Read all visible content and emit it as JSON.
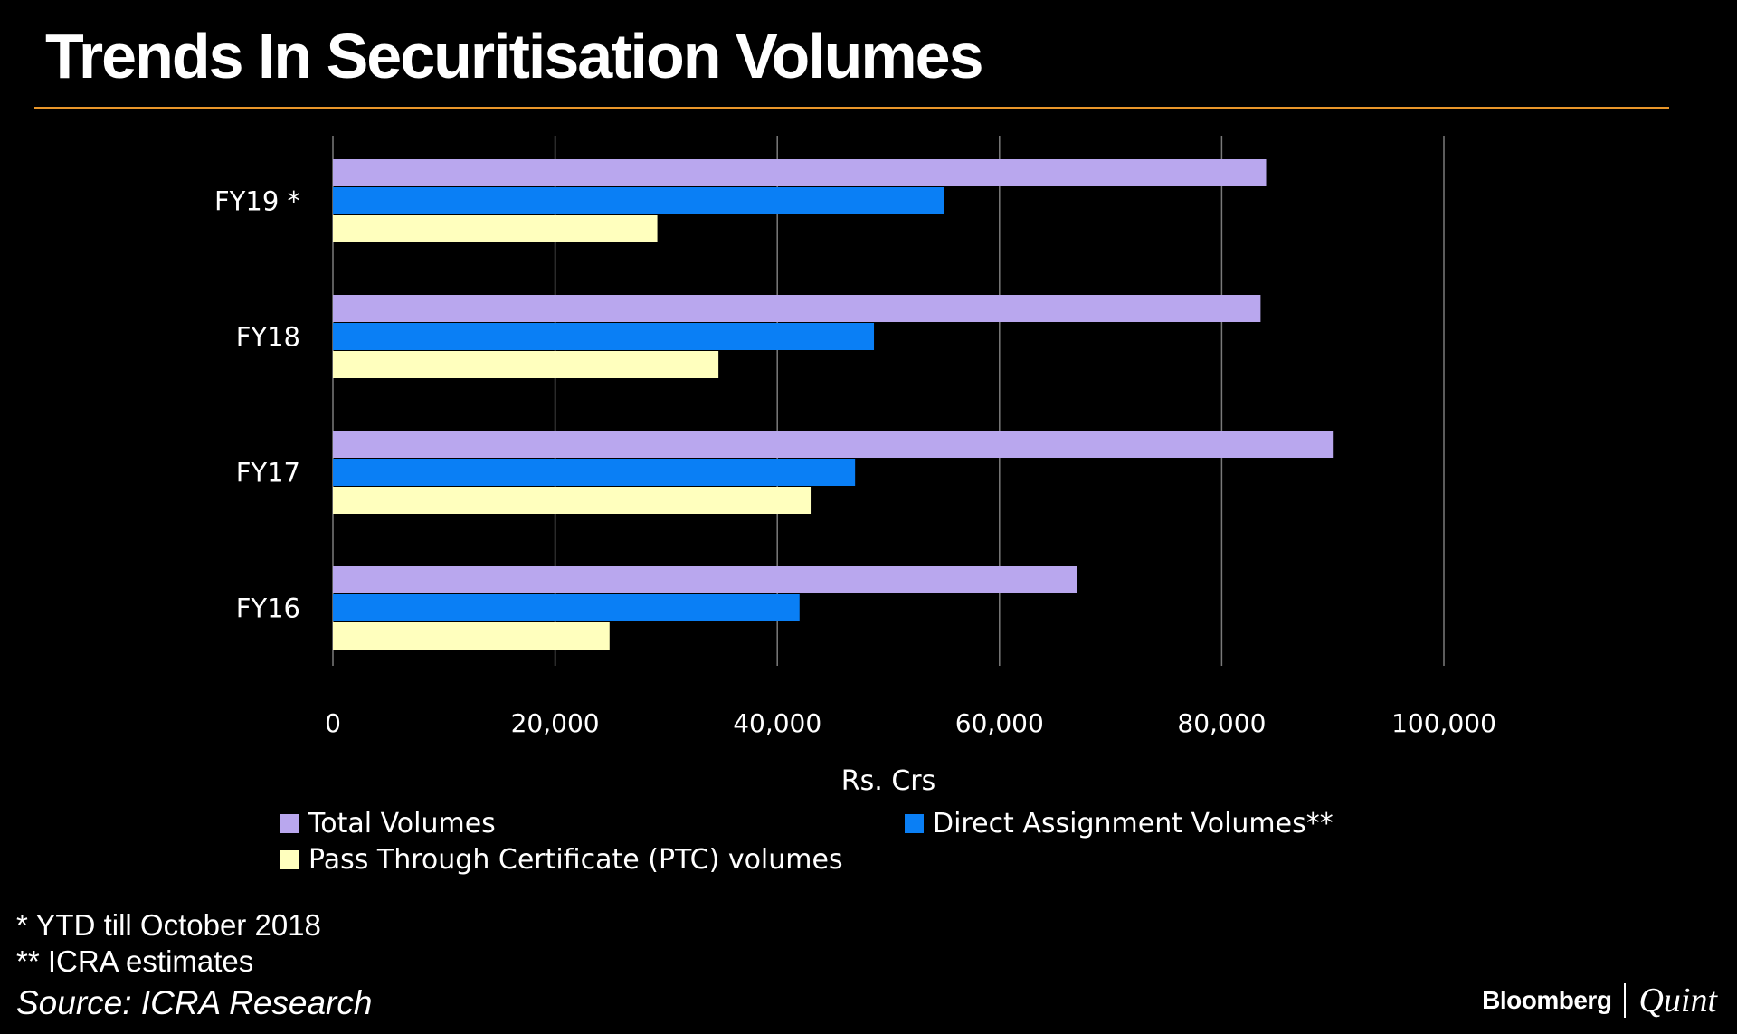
{
  "header": {
    "title": "Trends In Securitisation Volumes"
  },
  "chart_data": {
    "type": "bar",
    "orientation": "horizontal",
    "title": "Trends In Securitisation Volumes",
    "xlabel": "Rs. Crs",
    "ylabel": "",
    "xlim": [
      0,
      100000
    ],
    "xticks": [
      0,
      20000,
      40000,
      60000,
      80000,
      100000
    ],
    "xtick_labels": [
      "0",
      "20,000",
      "40,000",
      "60,000",
      "80,000",
      "100,000"
    ],
    "grid": true,
    "categories": [
      "FY19*",
      "FY18",
      "FY17",
      "FY16"
    ],
    "series": [
      {
        "name": "Total Volumes",
        "color": "#b9a7ee",
        "values": [
          84000,
          83500,
          90000,
          67000
        ]
      },
      {
        "name": "Direct Assignment Volumes**",
        "color": "#0a7ff5",
        "values": [
          55000,
          48700,
          47000,
          42000
        ]
      },
      {
        "name": "Pass Through Certificate (PTC) volumes",
        "color": "#ffffbe",
        "values": [
          29200,
          34700,
          43000,
          24900
        ]
      }
    ],
    "legend_position": "bottom"
  },
  "notes": {
    "ytd": "* YTD till October 2018",
    "estimates": "** ICRA estimates"
  },
  "source": "Source: ICRA Research",
  "brand": {
    "primary": "Bloomberg",
    "secondary": "Quint"
  },
  "colors": {
    "background": "#000000",
    "rule": "#e8962a",
    "grid": "#7a7a7a"
  }
}
